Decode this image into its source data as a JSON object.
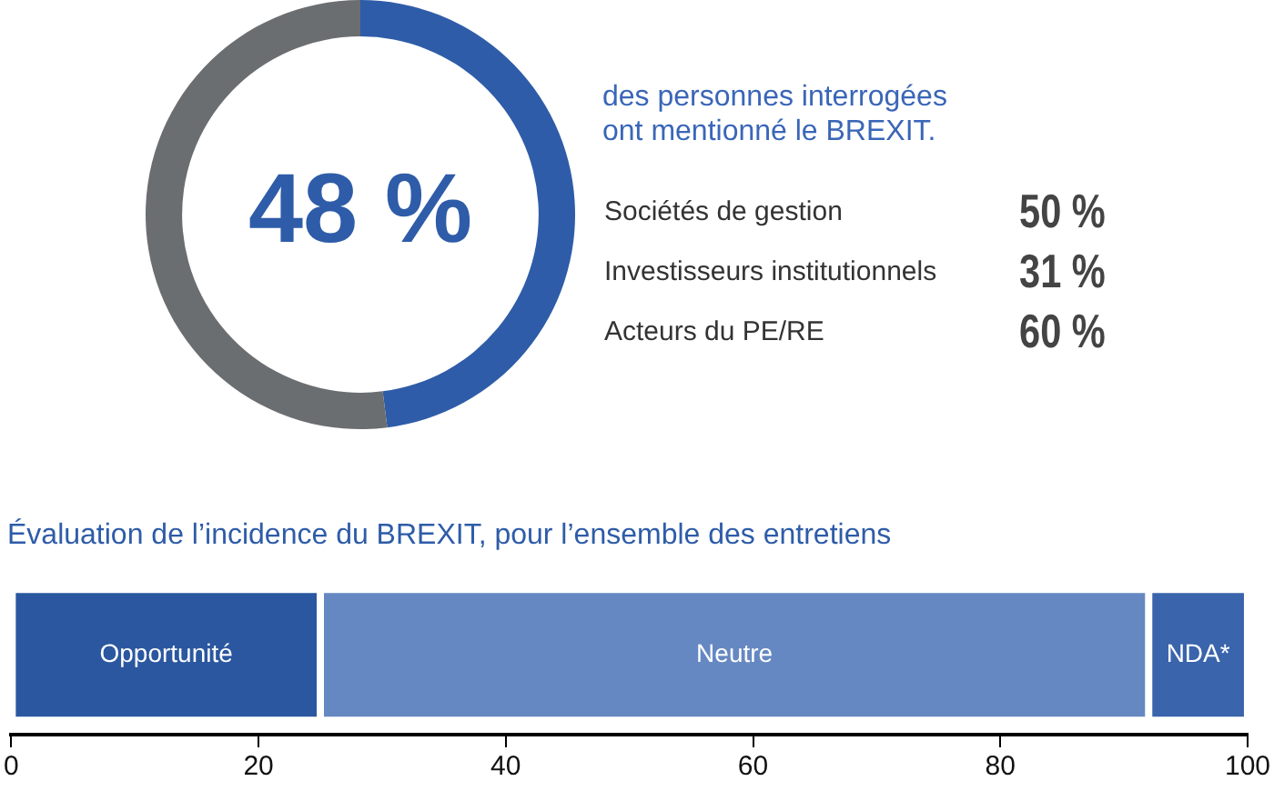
{
  "chart_data": [
    {
      "type": "donut",
      "categories": [
        null,
        null
      ],
      "values": [
        48,
        52
      ],
      "colors": [
        "#2e5ca8",
        "#6b6e70"
      ],
      "value_labels": [
        "48 %",
        null
      ],
      "annotations": [
        "des personnes interrogées ont mentionné le BREXIT."
      ]
    },
    {
      "type": "other",
      "categories": [
        "Sociétés de gestion",
        "Investisseurs institutionnels",
        "Acteurs du PE/RE"
      ],
      "values": [
        50,
        31,
        60
      ],
      "value_labels": [
        "50 %",
        "31 %",
        "60 %"
      ]
    },
    {
      "type": "bar",
      "orientation": "horizontal",
      "stacked": true,
      "title": "Évaluation de l’incidence du BREXIT, pour l’ensemble des entretiens",
      "categories": [
        null
      ],
      "series": [
        {
          "name": "Opportunité",
          "color": "#2b57a0",
          "values": [
            25
          ]
        },
        {
          "name": "Neutre",
          "color": "#6688c2",
          "values": [
            67
          ]
        },
        {
          "name": "NDA*",
          "color": "#3a64ab",
          "values": [
            8
          ]
        }
      ],
      "xlim": [
        0,
        100
      ],
      "xticks": [
        0,
        20,
        40,
        60,
        80,
        100
      ],
      "grid": false,
      "legend": false
    }
  ]
}
